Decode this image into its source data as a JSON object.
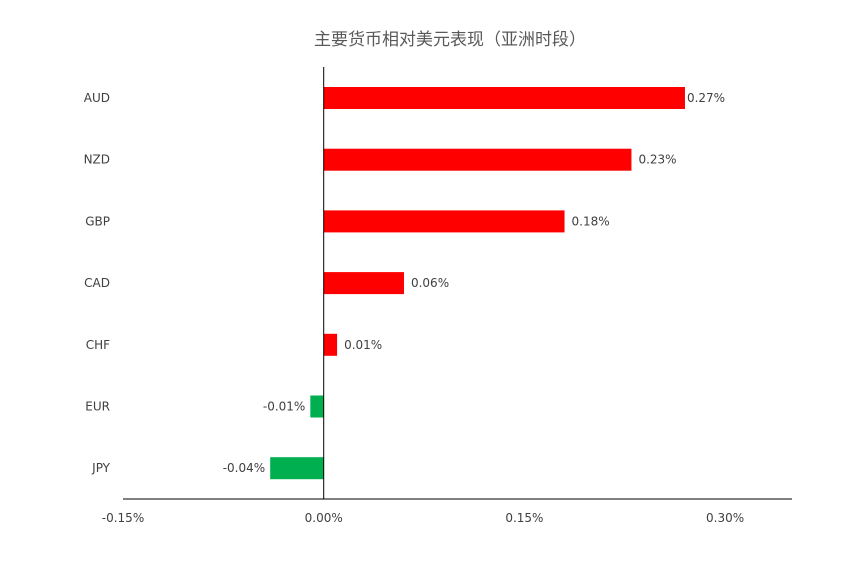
{
  "chart_data": {
    "type": "bar",
    "orientation": "horizontal",
    "title": "主要货币相对美元表现（亚洲时段）",
    "categories": [
      "AUD",
      "NZD",
      "GBP",
      "CAD",
      "CHF",
      "EUR",
      "JPY"
    ],
    "values": [
      0.27,
      0.23,
      0.18,
      0.06,
      0.01,
      -0.01,
      -0.04
    ],
    "data_labels": [
      "0.27%",
      "0.23%",
      "0.18%",
      "0.06%",
      "0.01%",
      "-0.01%",
      "-0.04%"
    ],
    "xlim": [
      -0.15,
      0.35
    ],
    "x_ticks": [
      -0.15,
      0,
      0.15,
      0.3
    ],
    "x_tick_labels": [
      "-0.15%",
      "0.00%",
      "0.15%",
      "0.30%"
    ],
    "grid": false,
    "legend": "none",
    "colors": {
      "positive": "#ff0000",
      "negative": "#00b050",
      "axis": "#000000",
      "text": "#404040"
    }
  }
}
